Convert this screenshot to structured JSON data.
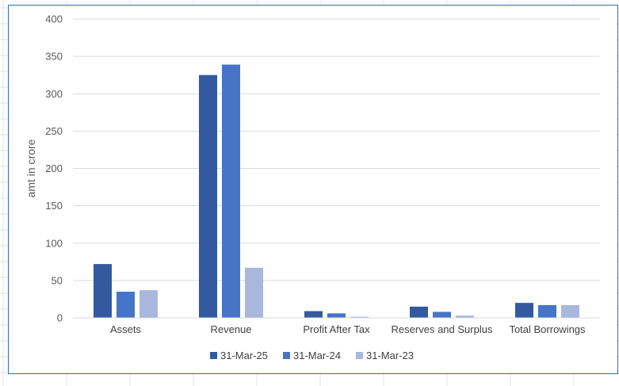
{
  "chart_data": {
    "type": "bar",
    "title": "",
    "xlabel": "",
    "ylabel": "amt in crore",
    "ylim": [
      0,
      400
    ],
    "yticks": [
      0,
      50,
      100,
      150,
      200,
      250,
      300,
      350,
      400
    ],
    "grid": true,
    "legend_position": "bottom",
    "categories": [
      "Assets",
      "Revenue",
      "Profit After Tax",
      "Reserves and Surplus",
      "Total Borrowings"
    ],
    "series": [
      {
        "name": "31-Mar-25",
        "color": "#335a9e",
        "values": [
          72,
          325,
          9,
          15,
          20
        ]
      },
      {
        "name": "31-Mar-24",
        "color": "#4674c8",
        "values": [
          35,
          339,
          6,
          8,
          17
        ]
      },
      {
        "name": "31-Mar-23",
        "color": "#a9b7dd",
        "values": [
          37,
          67,
          1.5,
          3,
          17
        ]
      }
    ]
  }
}
